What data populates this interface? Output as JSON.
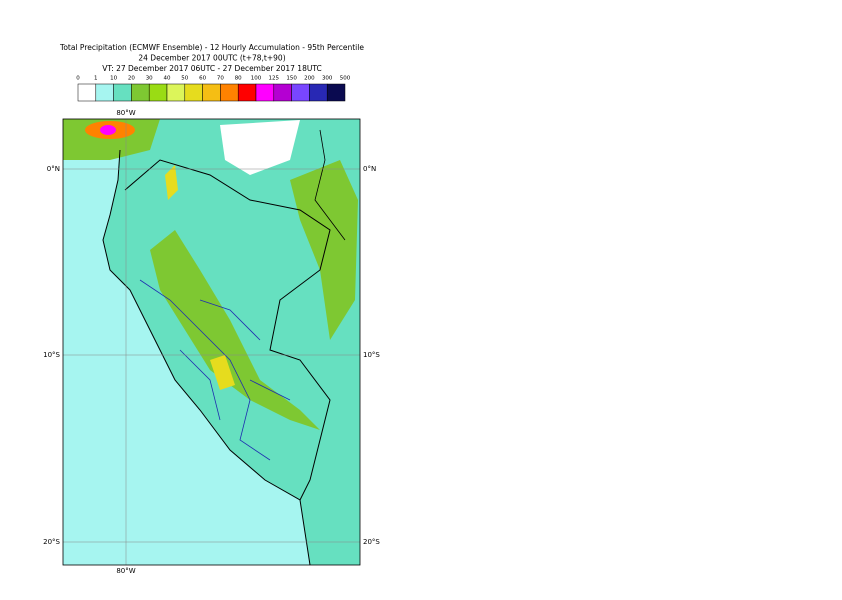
{
  "header": {
    "title_lines": [
      "Total Precipitation (ECMWF Ensemble) - 12 Hourly Accumulation - 95th Percentile",
      "24 December 2017 00UTC (t+78,t+90)",
      "VT: 27 December 2017 06UTC - 27 December 2017 18UTC"
    ]
  },
  "colorbar": {
    "labels": [
      0,
      1,
      10,
      20,
      30,
      40,
      50,
      60,
      70,
      80,
      100,
      125,
      150,
      200,
      300,
      500
    ],
    "colors": [
      "#ffffff",
      "#a6f5f0",
      "#66e0c0",
      "#7ec832",
      "#9adc14",
      "#dcf55a",
      "#e6dc1e",
      "#f5be14",
      "#ff8200",
      "#ff0000",
      "#ff00ff",
      "#b400d2",
      "#7846ff",
      "#2828b4",
      "#0a0a50"
    ]
  },
  "map": {
    "lon_labels": [
      "80°W",
      "80°W"
    ],
    "lat_labels": [
      "0°N",
      "10°S",
      "20°S"
    ]
  }
}
